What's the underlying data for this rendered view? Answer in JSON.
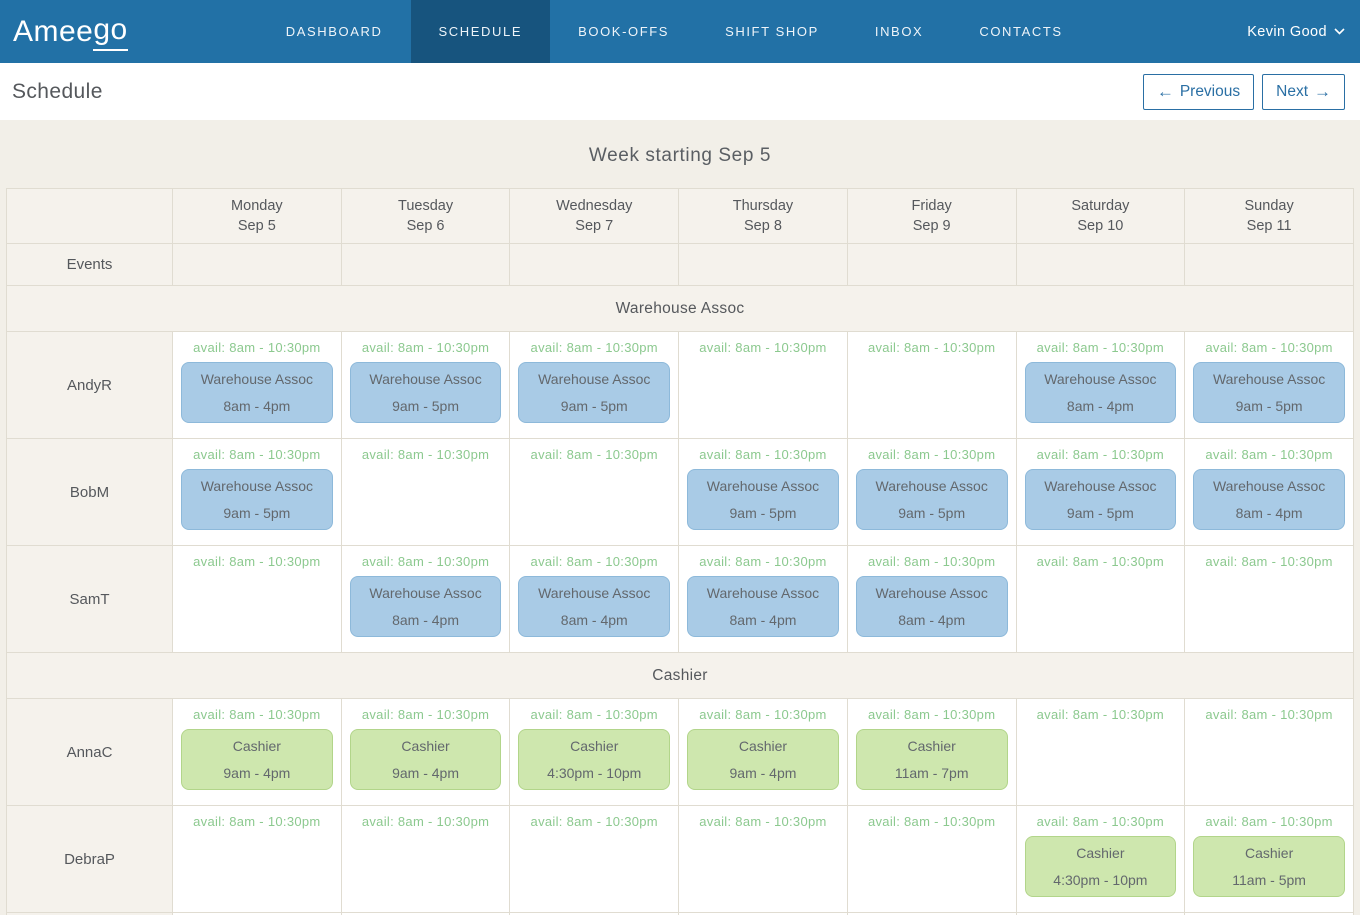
{
  "nav": {
    "logo": {
      "prefix": "Amee",
      "suffix": "go"
    },
    "items": [
      {
        "label": "DASHBOARD",
        "active": false
      },
      {
        "label": "SCHEDULE",
        "active": true
      },
      {
        "label": "BOOK-OFFS",
        "active": false
      },
      {
        "label": "SHIFT SHOP",
        "active": false
      },
      {
        "label": "INBOX",
        "active": false
      },
      {
        "label": "CONTACTS",
        "active": false
      }
    ],
    "user_name": "Kevin Good"
  },
  "page_header": {
    "title": "Schedule",
    "previous_label": "Previous",
    "next_label": "Next"
  },
  "icons": {
    "previous_arrow": "←",
    "next_arrow": "→",
    "chevron_down": "⌄"
  },
  "colors": {
    "navbar_bg": "#2271a6",
    "navbar_active_bg": "#17547e",
    "page_bg": "#f2efe8",
    "header_cell_bg": "#f5f2ec",
    "table_border": "#e0dcd1",
    "accent_blue": "#2a6fa4",
    "availability_green": "#8cc98f",
    "warehouse_shift_bg": "#a9cbe6",
    "warehouse_shift_border": "#8db9da",
    "cashier_shift_bg": "#cee7ae",
    "cashier_shift_border": "#b2d58a",
    "shift_text": "#63686d"
  },
  "schedule": {
    "week_title": "Week starting Sep 5",
    "events_label": "Events",
    "availability_text": "avail: 8am - 10:30pm",
    "days": [
      {
        "name": "Monday",
        "date": "Sep 5"
      },
      {
        "name": "Tuesday",
        "date": "Sep 6"
      },
      {
        "name": "Wednesday",
        "date": "Sep 7"
      },
      {
        "name": "Thursday",
        "date": "Sep 8"
      },
      {
        "name": "Friday",
        "date": "Sep 9"
      },
      {
        "name": "Saturday",
        "date": "Sep 10"
      },
      {
        "name": "Sunday",
        "date": "Sep 11"
      }
    ],
    "sections": [
      {
        "title": "Warehouse Assoc",
        "shift_color": "blue",
        "employees": [
          {
            "name": "AndyR",
            "shifts": [
              {
                "role": "Warehouse Assoc",
                "time": "8am - 4pm"
              },
              {
                "role": "Warehouse Assoc",
                "time": "9am - 5pm"
              },
              {
                "role": "Warehouse Assoc",
                "time": "9am - 5pm"
              },
              null,
              null,
              {
                "role": "Warehouse Assoc",
                "time": "8am - 4pm"
              },
              {
                "role": "Warehouse Assoc",
                "time": "9am - 5pm"
              }
            ]
          },
          {
            "name": "BobM",
            "shifts": [
              {
                "role": "Warehouse Assoc",
                "time": "9am - 5pm"
              },
              null,
              null,
              {
                "role": "Warehouse Assoc",
                "time": "9am - 5pm"
              },
              {
                "role": "Warehouse Assoc",
                "time": "9am - 5pm"
              },
              {
                "role": "Warehouse Assoc",
                "time": "9am - 5pm"
              },
              {
                "role": "Warehouse Assoc",
                "time": "8am - 4pm"
              }
            ]
          },
          {
            "name": "SamT",
            "shifts": [
              null,
              {
                "role": "Warehouse Assoc",
                "time": "8am - 4pm"
              },
              {
                "role": "Warehouse Assoc",
                "time": "8am - 4pm"
              },
              {
                "role": "Warehouse Assoc",
                "time": "8am - 4pm"
              },
              {
                "role": "Warehouse Assoc",
                "time": "8am - 4pm"
              },
              null,
              null
            ]
          }
        ]
      },
      {
        "title": "Cashier",
        "shift_color": "green",
        "employees": [
          {
            "name": "AnnaC",
            "shifts": [
              {
                "role": "Cashier",
                "time": "9am - 4pm"
              },
              {
                "role": "Cashier",
                "time": "9am - 4pm"
              },
              {
                "role": "Cashier",
                "time": "4:30pm - 10pm"
              },
              {
                "role": "Cashier",
                "time": "9am - 4pm"
              },
              {
                "role": "Cashier",
                "time": "11am - 7pm"
              },
              null,
              null
            ]
          },
          {
            "name": "DebraP",
            "shifts": [
              null,
              null,
              null,
              null,
              null,
              {
                "role": "Cashier",
                "time": "4:30pm - 10pm"
              },
              {
                "role": "Cashier",
                "time": "11am - 5pm"
              }
            ]
          }
        ]
      }
    ]
  }
}
